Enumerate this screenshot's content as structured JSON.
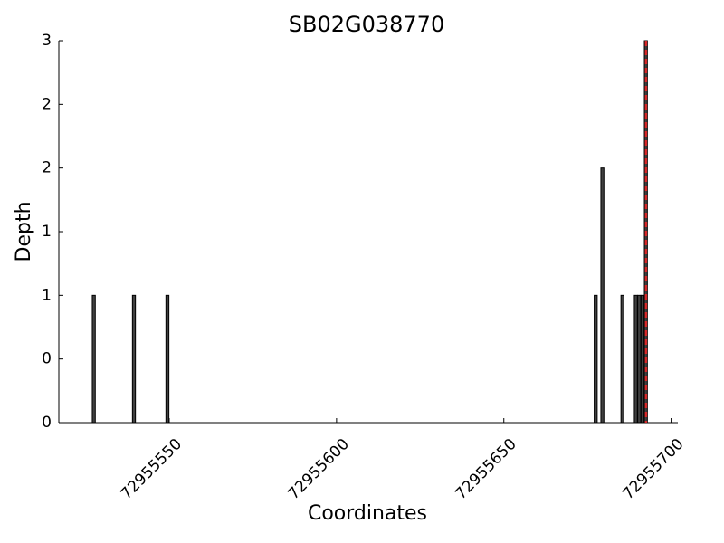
{
  "chart_data": {
    "type": "bar",
    "title": "SB02G038770",
    "xlabel": "Coordinates",
    "ylabel": "Depth",
    "x": [
      72955527,
      72955539,
      72955549,
      72955677,
      72955679,
      72955685,
      72955689,
      72955690,
      72955691,
      72955692
    ],
    "values": [
      1,
      1,
      1,
      1,
      2,
      1,
      1,
      1,
      1,
      3
    ],
    "color": "#404040",
    "reference_line": {
      "x": 72955692.5,
      "color": "#d62728"
    },
    "xlim": [
      72955517,
      72955702
    ],
    "xticks": [
      72955550,
      72955600,
      72955650,
      72955700
    ],
    "ylim": [
      0,
      3
    ],
    "yticks": [
      0,
      {
        "value": 0.5,
        "label": "0"
      },
      1,
      {
        "value": 1.5,
        "label": "1"
      },
      2,
      {
        "value": 2.5,
        "label": "2"
      },
      3
    ],
    "grid": false
  }
}
